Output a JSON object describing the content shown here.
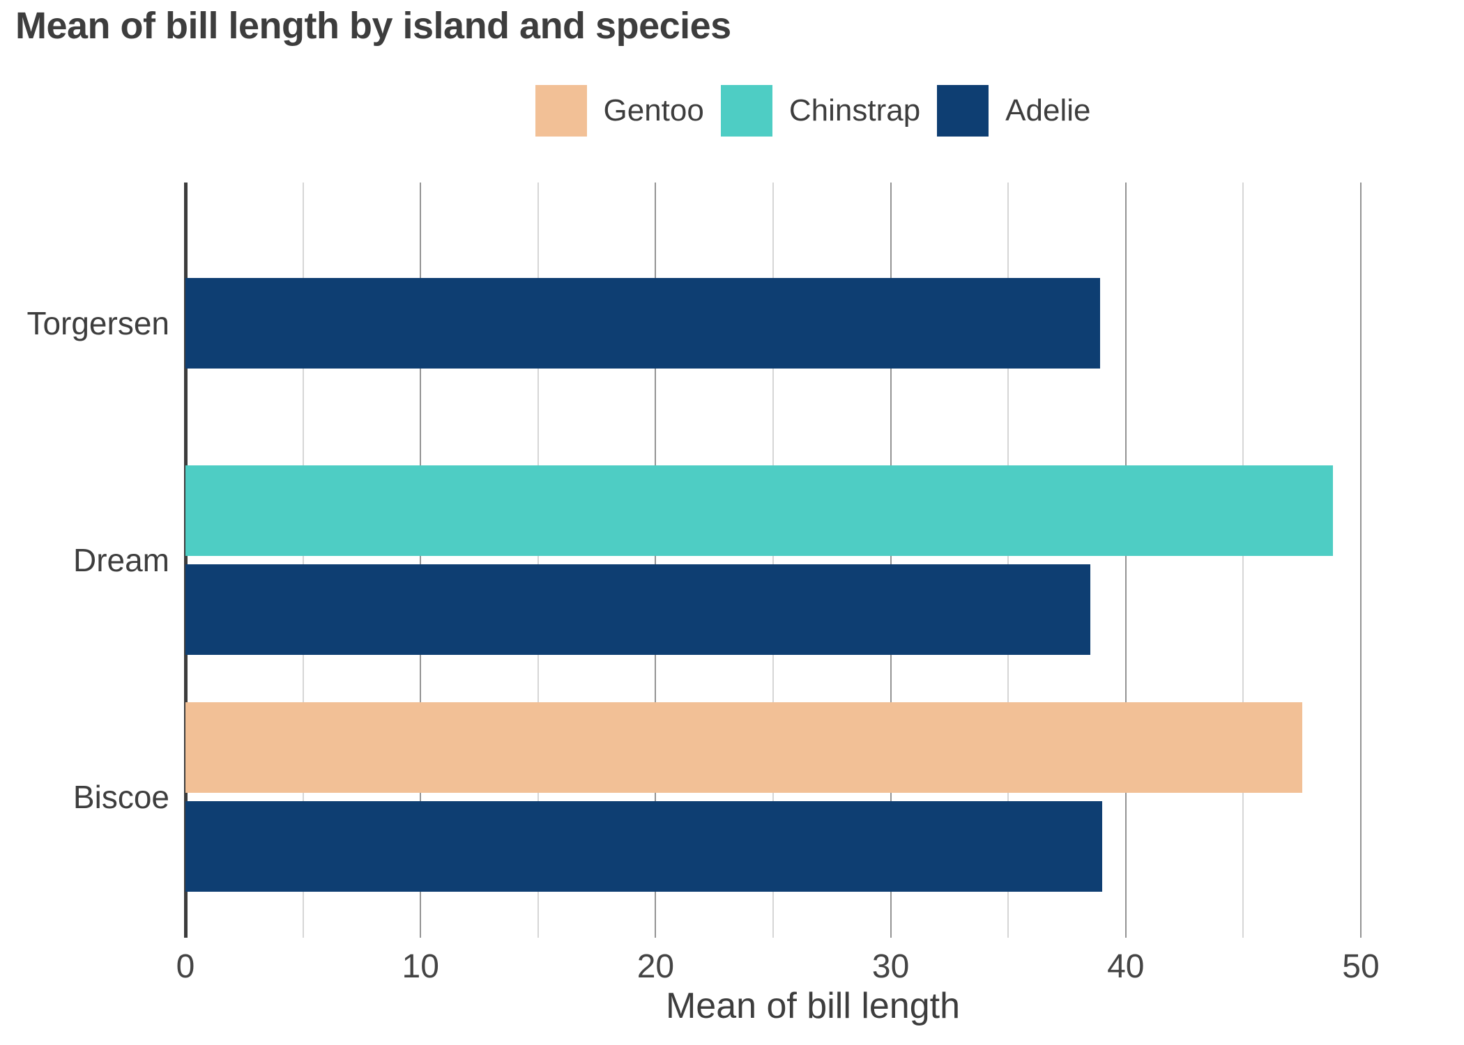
{
  "title": "Mean of bill length by island and species",
  "colors": {
    "background": "#ffffff",
    "text": "#3d3d3d",
    "axis_line": "#3c3c3c",
    "grid_major": "#939393",
    "grid_minor": "#d6d6d6",
    "gentoo": "#f2c096",
    "chinstrap": "#4ecdc4",
    "adelie": "#0e3e72"
  },
  "legend": {
    "position": "top-center",
    "items": [
      {
        "label": "Gentoo",
        "color": "#f2c096"
      },
      {
        "label": "Chinstrap",
        "color": "#4ecdc4"
      },
      {
        "label": "Adelie",
        "color": "#0e3e72"
      }
    ]
  },
  "x_axis": {
    "label": "Mean of bill length",
    "ticks": [
      0,
      10,
      20,
      30,
      40,
      50
    ],
    "minor_step": 5
  },
  "y_axis": {
    "categories": [
      "Torgersen",
      "Dream",
      "Biscoe"
    ]
  },
  "chart_data": {
    "type": "bar",
    "orientation": "horizontal",
    "title": "Mean of bill length by island and species",
    "xlabel": "Mean of bill length",
    "ylabel": "",
    "categories": [
      "Torgersen",
      "Dream",
      "Biscoe"
    ],
    "series": [
      {
        "name": "Gentoo",
        "color": "#f2c096",
        "values": [
          null,
          null,
          47.5
        ]
      },
      {
        "name": "Chinstrap",
        "color": "#4ecdc4",
        "values": [
          null,
          48.8,
          null
        ]
      },
      {
        "name": "Adelie",
        "color": "#0e3e72",
        "values": [
          38.9,
          38.5,
          39.0
        ]
      }
    ],
    "xlim": [
      0,
      53.4
    ],
    "xticks": [
      0,
      10,
      20,
      30,
      40,
      50
    ],
    "minor_tick_step": 5,
    "grid": "vertical",
    "gridlines": "major-and-minor",
    "legend_position": "top-center"
  }
}
